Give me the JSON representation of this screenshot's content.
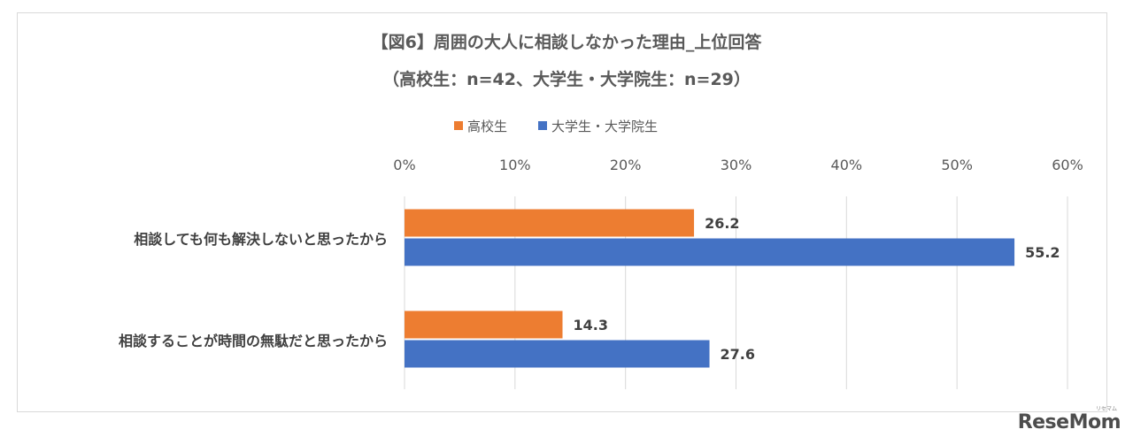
{
  "chart_data": {
    "type": "bar",
    "orientation": "horizontal",
    "title": "【図6】周囲の大人に相談しなかった理由_上位回答",
    "subtitle": "（高校生：n=42、大学生・大学院生：n=29）",
    "categories": [
      "相談しても何も解決しないと思ったから",
      "相談することが時間の無駄だと思ったから"
    ],
    "series": [
      {
        "name": "高校生",
        "color": "#ed7d31",
        "values": [
          26.2,
          14.3
        ],
        "labels": [
          "26.2",
          "14.3"
        ]
      },
      {
        "name": "大学生・大学院生",
        "color": "#4472c4",
        "values": [
          55.2,
          27.6
        ],
        "labels": [
          "55.2",
          "27.6"
        ]
      }
    ],
    "xlim": [
      0,
      60
    ],
    "xticks": [
      0,
      10,
      20,
      30,
      40,
      50,
      60
    ],
    "xtick_labels": [
      "0%",
      "10%",
      "20%",
      "30%",
      "40%",
      "50%",
      "60%"
    ],
    "axis_position": "top",
    "legend_position": "top",
    "grid": true,
    "grid_color": "#d9d9d9"
  },
  "logo": {
    "text": "ReseMom",
    "sub": "リセマム"
  }
}
